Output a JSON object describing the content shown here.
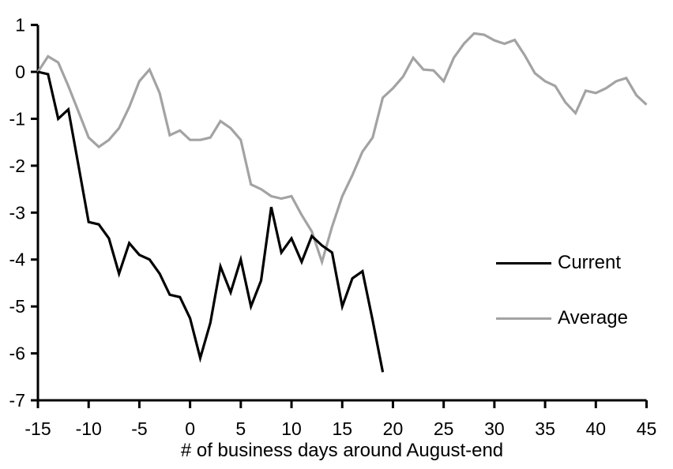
{
  "chart_data": {
    "type": "line",
    "title": "",
    "xlabel": "# of business days around August-end",
    "ylabel": "",
    "xlim": [
      -15,
      45
    ],
    "ylim": [
      -7,
      1
    ],
    "x_ticks": [
      -15,
      -10,
      -5,
      0,
      5,
      10,
      15,
      20,
      25,
      30,
      35,
      40,
      45
    ],
    "y_ticks": [
      1,
      0,
      -1,
      -2,
      -3,
      -4,
      -5,
      -6,
      -7
    ],
    "grid": false,
    "axis_color": "#000000",
    "legend_position": "middle-right",
    "series": [
      {
        "name": "Current",
        "color": "#000000",
        "x": [
          -15,
          -14,
          -13,
          -12,
          -11,
          -10,
          -9,
          -8,
          -7,
          -6,
          -5,
          -4,
          -3,
          -2,
          -1,
          0,
          1,
          2,
          3,
          4,
          5,
          6,
          7,
          8,
          9,
          10,
          11,
          12,
          13,
          14,
          15,
          16,
          17,
          18,
          19
        ],
        "values": [
          0,
          -0.05,
          -1.0,
          -0.8,
          -2.0,
          -3.2,
          -3.25,
          -3.55,
          -4.3,
          -3.65,
          -3.9,
          -4.0,
          -4.3,
          -4.75,
          -4.8,
          -5.25,
          -6.1,
          -5.35,
          -4.15,
          -4.7,
          -4.0,
          -5.0,
          -4.45,
          -2.88,
          -3.85,
          -3.55,
          -4.05,
          -3.5,
          -3.7,
          -3.85,
          -5.0,
          -4.4,
          -4.25,
          -5.3,
          -6.4
        ]
      },
      {
        "name": "Average",
        "color": "#a3a3a3",
        "x": [
          -15,
          -14,
          -13,
          -12,
          -11,
          -10,
          -9,
          -8,
          -7,
          -6,
          -5,
          -4,
          -3,
          -2,
          -1,
          0,
          1,
          2,
          3,
          4,
          5,
          6,
          7,
          8,
          9,
          10,
          11,
          12,
          13,
          14,
          15,
          16,
          17,
          18,
          19,
          20,
          21,
          22,
          23,
          24,
          25,
          26,
          27,
          28,
          29,
          30,
          31,
          32,
          33,
          34,
          35,
          36,
          37,
          38,
          39,
          40,
          41,
          42,
          43,
          44,
          45
        ],
        "values": [
          0,
          0.33,
          0.2,
          -0.3,
          -0.85,
          -1.4,
          -1.6,
          -1.45,
          -1.2,
          -0.75,
          -0.2,
          0.05,
          -0.45,
          -1.35,
          -1.25,
          -1.45,
          -1.45,
          -1.4,
          -1.05,
          -1.2,
          -1.45,
          -2.4,
          -2.5,
          -2.65,
          -2.7,
          -2.65,
          -3.05,
          -3.4,
          -4.05,
          -3.3,
          -2.65,
          -2.2,
          -1.7,
          -1.4,
          -0.55,
          -0.35,
          -0.1,
          0.3,
          0.05,
          0.03,
          -0.2,
          0.3,
          0.6,
          0.82,
          0.79,
          0.67,
          0.6,
          0.68,
          0.35,
          -0.03,
          -0.2,
          -0.3,
          -0.65,
          -0.88,
          -0.4,
          -0.45,
          -0.35,
          -0.2,
          -0.13,
          -0.5,
          -0.7
        ]
      }
    ]
  }
}
